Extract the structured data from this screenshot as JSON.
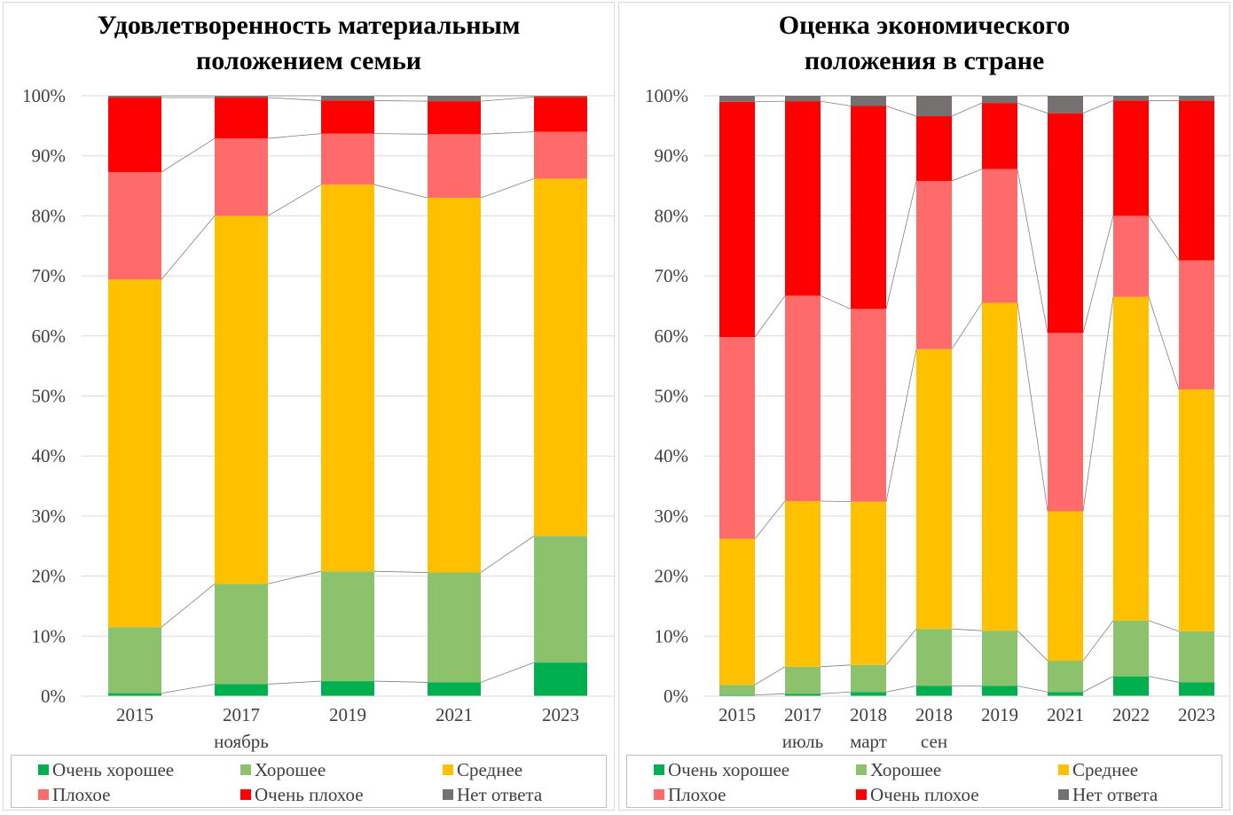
{
  "colors": {
    "very_good": "#00B050",
    "good": "#8DC26C",
    "average": "#FFC000",
    "bad": "#FF6B6B",
    "very_bad": "#FF0000",
    "no_answer": "#767171"
  },
  "legend": {
    "very_good": "Очень хорошее",
    "good": "Хорошее",
    "average": "Среднее",
    "bad": "Плохое",
    "very_bad": "Очень плохое",
    "no_answer": "Нет ответа"
  },
  "chart_data": [
    {
      "type": "bar",
      "stacked": "percent",
      "title": [
        "Удовлетворенность материальным",
        "положением семьи"
      ],
      "categories": [
        [
          "2015"
        ],
        [
          "2017",
          "ноябрь"
        ],
        [
          "2019"
        ],
        [
          "2021"
        ],
        [
          "2023"
        ]
      ],
      "ylim": [
        0,
        100
      ],
      "yticks": [
        "0%",
        "10%",
        "20%",
        "30%",
        "40%",
        "50%",
        "60%",
        "70%",
        "80%",
        "90%",
        "100%"
      ],
      "grid": true,
      "connector_lines": true,
      "legend_position": "bottom",
      "series": [
        {
          "name": "Очень хорошее",
          "color_key": "very_good",
          "values": [
            0.5,
            2.0,
            2.5,
            2.3,
            5.6
          ]
        },
        {
          "name": "Хорошее",
          "color_key": "good",
          "values": [
            11.0,
            16.7,
            18.3,
            18.3,
            21.1
          ]
        },
        {
          "name": "Среднее",
          "color_key": "average",
          "values": [
            57.9,
            61.3,
            64.4,
            62.4,
            59.5
          ]
        },
        {
          "name": "Плохое",
          "color_key": "bad",
          "values": [
            17.9,
            12.9,
            8.5,
            10.6,
            7.8
          ]
        },
        {
          "name": "Очень плохое",
          "color_key": "very_bad",
          "values": [
            12.4,
            6.8,
            5.5,
            5.5,
            5.8
          ]
        },
        {
          "name": "Нет ответа",
          "color_key": "no_answer",
          "values": [
            0.3,
            0.3,
            0.8,
            0.9,
            0.2
          ]
        }
      ]
    },
    {
      "type": "bar",
      "stacked": "percent",
      "title": [
        "Оценка экономического",
        "положения в стране"
      ],
      "categories": [
        [
          "2015"
        ],
        [
          "2017",
          "июль"
        ],
        [
          "2018",
          "март"
        ],
        [
          "2018",
          "сен"
        ],
        [
          "2019"
        ],
        [
          "2021"
        ],
        [
          "2022"
        ],
        [
          "2023"
        ]
      ],
      "ylim": [
        0,
        100
      ],
      "yticks": [
        "0%",
        "10%",
        "20%",
        "30%",
        "40%",
        "50%",
        "60%",
        "70%",
        "80%",
        "90%",
        "100%"
      ],
      "grid": true,
      "connector_lines": true,
      "legend_position": "bottom",
      "series": [
        {
          "name": "Очень хорошее",
          "color_key": "very_good",
          "values": [
            0.2,
            0.4,
            0.7,
            1.7,
            1.7,
            0.7,
            3.3,
            2.3
          ]
        },
        {
          "name": "Хорошее",
          "color_key": "good",
          "values": [
            1.7,
            4.5,
            4.5,
            9.5,
            9.2,
            5.2,
            9.3,
            8.5
          ]
        },
        {
          "name": "Среднее",
          "color_key": "average",
          "values": [
            24.3,
            27.6,
            27.2,
            46.6,
            54.6,
            24.9,
            53.9,
            40.3
          ]
        },
        {
          "name": "Плохое",
          "color_key": "bad",
          "values": [
            33.6,
            34.2,
            32.1,
            28.0,
            22.3,
            29.7,
            13.5,
            21.5
          ]
        },
        {
          "name": "Очень плохое",
          "color_key": "very_bad",
          "values": [
            39.2,
            32.4,
            33.8,
            10.8,
            11.0,
            36.6,
            19.2,
            26.6
          ]
        },
        {
          "name": "Нет ответа",
          "color_key": "no_answer",
          "values": [
            1.0,
            0.9,
            1.7,
            3.4,
            1.2,
            2.9,
            0.8,
            0.8
          ]
        }
      ]
    }
  ]
}
